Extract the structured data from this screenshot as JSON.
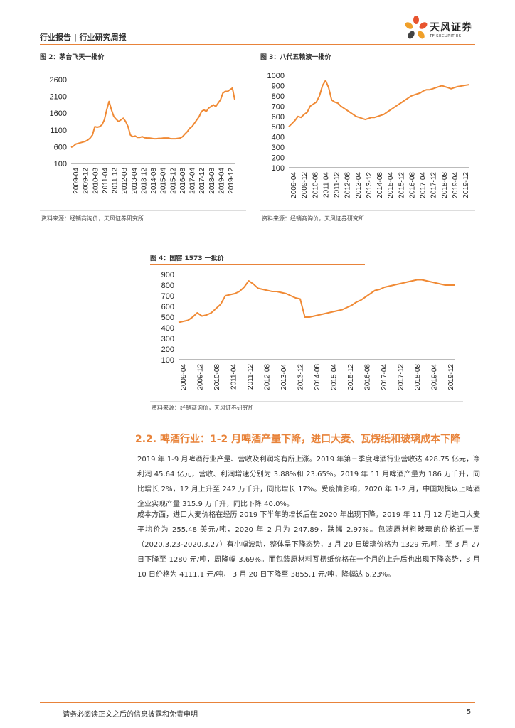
{
  "header": {
    "title": "行业报告 | 行业研究周报",
    "logo_name": "天风证券",
    "logo_sub": "TF SECURITIES"
  },
  "figures": [
    {
      "title": "图 2：茅台飞天一批价",
      "source": "资料来源：经销商询价，天风证券研究所"
    },
    {
      "title": "图 3：八代五粮液一批价",
      "source": "资料来源：经销商询价，天风证券研究所"
    },
    {
      "title": "图 4：国窖 1573 一批价",
      "source": "资料来源：经销商询价，天风证券研究所"
    }
  ],
  "chart_data": [
    {
      "type": "line",
      "title": "茅台飞天一批价",
      "yticks": [
        100,
        600,
        1100,
        1600,
        2100,
        2600
      ],
      "ylim": [
        100,
        2600
      ],
      "xticks": [
        "2009-04",
        "2009-12",
        "2010-08",
        "2011-04",
        "2011-12",
        "2012-08",
        "2013-04",
        "2013-12",
        "2014-08",
        "2015-04",
        "2015-12",
        "2016-08",
        "2017-04",
        "2017-12",
        "2018-08",
        "2019-04",
        "2019-12"
      ],
      "series": [
        {
          "name": "一批价",
          "color": "#f08a35",
          "values": [
            580,
            620,
            680,
            700,
            720,
            740,
            760,
            800,
            860,
            950,
            1200,
            1180,
            1200,
            1250,
            1400,
            1700,
            1950,
            1700,
            1500,
            1420,
            1350,
            1400,
            1450,
            1350,
            1200,
            950,
            900,
            920,
            880,
            880,
            900,
            870,
            860,
            860,
            850,
            840,
            840,
            850,
            850,
            860,
            860,
            860,
            840,
            840,
            840,
            850,
            860,
            900,
            980,
            1050,
            1150,
            1200,
            1300,
            1400,
            1500,
            1650,
            1700,
            1650,
            1750,
            1800,
            1850,
            1800,
            1900,
            2000,
            2200,
            2250,
            2250,
            2300,
            2350,
            2000
          ]
        }
      ]
    },
    {
      "type": "line",
      "title": "八代五粮液一批价",
      "yticks": [
        100,
        200,
        300,
        400,
        500,
        600,
        700,
        800,
        900,
        1000
      ],
      "ylim": [
        100,
        1000
      ],
      "xticks": [
        "2009-04",
        "2009-12",
        "2010-08",
        "2011-04",
        "2011-12",
        "2012-08",
        "2013-04",
        "2013-12",
        "2014-08",
        "2015-04",
        "2015-12",
        "2016-08",
        "2017-04",
        "2017-12",
        "2018-08",
        "2019-04",
        "2019-12"
      ],
      "series": [
        {
          "name": "一批价",
          "color": "#f08a35",
          "values": [
            500,
            530,
            560,
            600,
            590,
            620,
            640,
            700,
            720,
            740,
            800,
            900,
            950,
            880,
            760,
            740,
            730,
            700,
            680,
            660,
            640,
            620,
            600,
            590,
            580,
            570,
            580,
            590,
            590,
            600,
            610,
            620,
            640,
            660,
            680,
            700,
            720,
            740,
            760,
            780,
            800,
            810,
            820,
            830,
            850,
            860,
            860,
            870,
            880,
            890,
            900,
            890,
            880,
            870,
            880,
            890,
            895,
            900,
            905,
            910
          ]
        }
      ]
    },
    {
      "type": "line",
      "title": "国窖 1573 一批价",
      "yticks": [
        100,
        200,
        300,
        400,
        500,
        600,
        700,
        800,
        900
      ],
      "ylim": [
        100,
        900
      ],
      "xticks": [
        "2009-04",
        "2009-12",
        "2010-08",
        "2011-04",
        "2011-12",
        "2012-08",
        "2013-04",
        "2013-12",
        "2014-08",
        "2015-04",
        "2015-12",
        "2016-08",
        "2017-04",
        "2017-12",
        "2018-08",
        "2019-04",
        "2019-12"
      ],
      "series": [
        {
          "name": "一批价",
          "color": "#f08a35",
          "values": [
            450,
            460,
            470,
            500,
            540,
            510,
            520,
            540,
            580,
            620,
            700,
            710,
            720,
            740,
            780,
            840,
            810,
            770,
            760,
            750,
            740,
            740,
            730,
            720,
            700,
            680,
            670,
            500,
            500,
            510,
            520,
            530,
            540,
            550,
            560,
            570,
            590,
            610,
            640,
            660,
            690,
            720,
            750,
            760,
            780,
            790,
            800,
            810,
            820,
            830,
            840,
            850,
            850,
            840,
            830,
            820,
            810,
            800,
            800,
            800
          ]
        }
      ]
    }
  ],
  "section": {
    "title": "2.2. 啤酒行业：1-2 月啤酒产量下降，进口大麦、瓦楞纸和玻璃成本下降"
  },
  "paragraphs": [
    "2019 年 1-9 月啤酒行业产量、营收及利润均有所上涨。2019 年第三季度啤酒行业营收达 428.75 亿元，净利润 45.64 亿元，营收、利润增速分别为 3.88%和 23.65%。2019 年 11 月啤酒产量为 186 万千升，同比增长 2%，12 月上升至 242 万千升，同比增长 17%。受疫情影响，2020 年 1-2 月，中国规模以上啤酒企业实现产量 315.9 万千升，同比下降  40.0%。",
    "成本方面，进口大麦价格在经历 2019 下半年的增长后在 2020 年出现下降。2019 年 11 月 12 月进口大麦平均价为 255.48 美元/吨，2020 年 2 月为 247.89，跌幅 2.97%。包装原材料玻璃的价格近一周（2020.3.23-2020.3.27）有小幅波动，整体呈下降态势，3 月 20 日玻璃价格为 1329 元/吨，至 3 月 27 日下降至 1280 元/吨，周降幅 3.69%。而包装原材料瓦楞纸价格在一个月的上升后也出现下降态势，3 月 10 日价格为 4111.1 元/吨， 3 月 20 日下降至 3855.1 元/吨，降幅达 6.23%。"
  ],
  "footer": {
    "disclaimer": "请务必阅读正文之后的信息披露和免责申明",
    "page": "5"
  }
}
